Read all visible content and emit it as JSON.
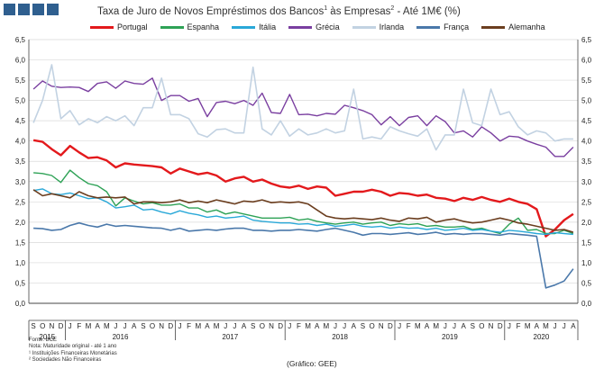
{
  "header": {
    "logo_name": "gee-logo",
    "title_main": "Taxa de Juro de Novos Empréstimos dos Bancos",
    "title_sup1": "1",
    "title_mid": " às Empresas",
    "title_sup2": "2",
    "title_end": " -  Até 1M€ (%)"
  },
  "footer": {
    "notes": [
      "Fonte: BCE",
      "Nota: Maturidade original - até 1 ano",
      "¹ Instituições Financeiras Monetárias",
      "² Sociedades Não Financeiras"
    ],
    "credit": "(Gráfico:  GEE)"
  },
  "chart_data": {
    "type": "line",
    "title": "Taxa de Juro de Novos Empréstimos dos Bancos¹ às Empresas² - Até 1M€ (%)",
    "xlabel": "",
    "ylabel": "%",
    "ylim": [
      0,
      6.5
    ],
    "yticks": [
      "0,0",
      "0,5",
      "1,0",
      "1,5",
      "2,0",
      "2,5",
      "3,0",
      "3,5",
      "4,0",
      "4,5",
      "5,0",
      "5,5",
      "6,0",
      "6,5"
    ],
    "grid": true,
    "legend_position": "top",
    "month_labels": [
      "S",
      "O",
      "N",
      "D",
      "J",
      "F",
      "M",
      "A",
      "M",
      "J",
      "J",
      "A",
      "S",
      "O",
      "N",
      "D",
      "J",
      "F",
      "M",
      "A",
      "M",
      "J",
      "J",
      "A",
      "S",
      "O",
      "N",
      "D",
      "J",
      "F",
      "M",
      "A",
      "M",
      "J",
      "J",
      "A",
      "S",
      "O",
      "N",
      "D",
      "J",
      "F",
      "M",
      "A",
      "M",
      "J",
      "J",
      "A",
      "S",
      "O",
      "N",
      "D",
      "J",
      "F",
      "M",
      "A",
      "M",
      "J",
      "J",
      "A"
    ],
    "years": [
      {
        "label": "2015",
        "start": 0,
        "end": 3
      },
      {
        "label": "2016",
        "start": 4,
        "end": 15
      },
      {
        "label": "2017",
        "start": 16,
        "end": 27
      },
      {
        "label": "2018",
        "start": 28,
        "end": 39
      },
      {
        "label": "2019",
        "start": 40,
        "end": 51
      },
      {
        "label": "2020",
        "start": 52,
        "end": 59
      }
    ],
    "series": [
      {
        "name": "Portugal",
        "color": "#e3191c",
        "width": 2.4,
        "values": [
          4.02,
          3.98,
          3.8,
          3.65,
          3.88,
          3.72,
          3.58,
          3.6,
          3.52,
          3.35,
          3.45,
          3.42,
          3.4,
          3.38,
          3.35,
          3.2,
          3.32,
          3.25,
          3.18,
          3.22,
          3.15,
          3.0,
          3.08,
          3.12,
          3.0,
          3.05,
          2.95,
          2.88,
          2.85,
          2.9,
          2.82,
          2.88,
          2.85,
          2.65,
          2.7,
          2.75,
          2.75,
          2.8,
          2.75,
          2.65,
          2.72,
          2.7,
          2.65,
          2.68,
          2.6,
          2.58,
          2.52,
          2.6,
          2.55,
          2.62,
          2.55,
          2.5,
          2.58,
          2.5,
          2.45,
          2.32,
          1.65,
          1.82,
          2.05,
          2.2
        ]
      },
      {
        "name": "Espanha",
        "color": "#2ea256",
        "width": 1.4,
        "values": [
          3.22,
          3.2,
          3.15,
          2.98,
          3.28,
          3.1,
          2.95,
          2.9,
          2.75,
          2.4,
          2.6,
          2.52,
          2.45,
          2.48,
          2.42,
          2.42,
          2.45,
          2.35,
          2.35,
          2.25,
          2.3,
          2.2,
          2.25,
          2.2,
          2.15,
          2.1,
          2.1,
          2.1,
          2.12,
          2.05,
          2.08,
          2.02,
          1.98,
          1.95,
          1.98,
          2.0,
          1.95,
          1.98,
          2.0,
          1.92,
          1.96,
          1.94,
          1.96,
          1.9,
          1.92,
          1.88,
          1.88,
          1.9,
          1.82,
          1.85,
          1.78,
          1.72,
          1.95,
          2.1,
          1.8,
          1.82,
          1.72,
          1.72,
          1.8,
          1.72
        ]
      },
      {
        "name": "Itália",
        "color": "#29a8d8",
        "width": 1.4,
        "values": [
          2.78,
          2.82,
          2.7,
          2.68,
          2.72,
          2.65,
          2.58,
          2.6,
          2.5,
          2.35,
          2.38,
          2.42,
          2.3,
          2.32,
          2.25,
          2.2,
          2.28,
          2.22,
          2.18,
          2.12,
          2.15,
          2.1,
          2.12,
          2.15,
          2.05,
          2.02,
          2.0,
          1.98,
          1.98,
          1.95,
          1.96,
          1.92,
          1.95,
          1.9,
          1.92,
          1.95,
          1.9,
          1.88,
          1.9,
          1.85,
          1.88,
          1.85,
          1.86,
          1.82,
          1.85,
          1.8,
          1.82,
          1.85,
          1.8,
          1.82,
          1.78,
          1.75,
          1.8,
          1.78,
          1.75,
          1.72,
          1.7,
          1.74,
          1.72,
          1.7
        ]
      },
      {
        "name": "Grécia",
        "color": "#7a3fa0",
        "width": 1.4,
        "values": [
          5.28,
          5.48,
          5.35,
          5.32,
          5.33,
          5.32,
          5.22,
          5.42,
          5.46,
          5.3,
          5.48,
          5.42,
          5.4,
          5.55,
          5.0,
          5.12,
          5.12,
          4.98,
          5.05,
          4.6,
          4.95,
          4.98,
          4.92,
          5.0,
          4.88,
          5.18,
          4.7,
          4.68,
          5.15,
          4.65,
          4.66,
          4.62,
          4.68,
          4.66,
          4.88,
          4.82,
          4.75,
          4.65,
          4.4,
          4.6,
          4.38,
          4.58,
          4.62,
          4.38,
          4.62,
          4.48,
          4.2,
          4.25,
          4.1,
          4.35,
          4.2,
          4.0,
          4.12,
          4.1,
          4.0,
          3.92,
          3.85,
          3.62,
          3.62,
          3.85
        ]
      },
      {
        "name": "Irlanda",
        "color": "#c2d2e2",
        "width": 1.6,
        "values": [
          4.45,
          5.0,
          5.88,
          4.55,
          4.75,
          4.4,
          4.55,
          4.45,
          4.6,
          4.5,
          4.62,
          4.38,
          4.82,
          4.82,
          5.55,
          4.65,
          4.65,
          4.55,
          4.18,
          4.1,
          4.28,
          4.3,
          4.2,
          4.2,
          5.82,
          4.3,
          4.15,
          4.5,
          4.12,
          4.3,
          4.15,
          4.2,
          4.3,
          4.2,
          4.25,
          5.28,
          4.05,
          4.1,
          4.05,
          4.35,
          4.25,
          4.18,
          4.12,
          4.3,
          3.78,
          4.15,
          4.15,
          5.28,
          4.45,
          4.38,
          5.28,
          4.65,
          4.72,
          4.35,
          4.15,
          4.25,
          4.2,
          4.0,
          4.05,
          4.05
        ]
      },
      {
        "name": "França",
        "color": "#4a78aa",
        "width": 1.6,
        "values": [
          1.85,
          1.84,
          1.8,
          1.82,
          1.92,
          1.98,
          1.92,
          1.88,
          1.95,
          1.9,
          1.92,
          1.9,
          1.88,
          1.86,
          1.85,
          1.8,
          1.85,
          1.78,
          1.8,
          1.82,
          1.8,
          1.83,
          1.85,
          1.85,
          1.8,
          1.8,
          1.78,
          1.8,
          1.8,
          1.82,
          1.8,
          1.78,
          1.82,
          1.85,
          1.8,
          1.75,
          1.68,
          1.72,
          1.72,
          1.7,
          1.72,
          1.74,
          1.7,
          1.72,
          1.75,
          1.7,
          1.72,
          1.7,
          1.72,
          1.72,
          1.7,
          1.68,
          1.72,
          1.7,
          1.68,
          1.65,
          0.38,
          0.45,
          0.55,
          0.85
        ]
      },
      {
        "name": "Alemanha",
        "color": "#6b3e1f",
        "width": 1.6,
        "values": [
          2.8,
          2.65,
          2.7,
          2.65,
          2.6,
          2.75,
          2.65,
          2.6,
          2.62,
          2.6,
          2.62,
          2.45,
          2.5,
          2.5,
          2.48,
          2.5,
          2.55,
          2.48,
          2.52,
          2.48,
          2.55,
          2.5,
          2.45,
          2.52,
          2.5,
          2.55,
          2.48,
          2.5,
          2.48,
          2.5,
          2.45,
          2.3,
          2.15,
          2.1,
          2.08,
          2.1,
          2.08,
          2.06,
          2.1,
          2.05,
          2.02,
          2.1,
          2.08,
          2.12,
          2.0,
          2.05,
          2.08,
          2.02,
          1.98,
          2.0,
          2.05,
          2.1,
          2.05,
          1.98,
          1.95,
          1.9,
          1.85,
          1.8,
          1.82,
          1.75
        ]
      }
    ]
  }
}
